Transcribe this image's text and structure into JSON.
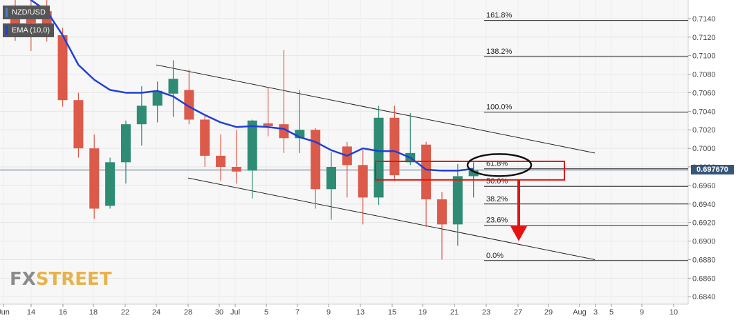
{
  "legend": {
    "symbol": "NZD/USD",
    "indicator": "EMA (10,0)",
    "symbol_color": "#4a7dd0",
    "indicator_color": "#1f3fd6"
  },
  "watermark": {
    "part1": "FX",
    "part2": "STREET"
  },
  "current_price_label": "0.697670",
  "colors": {
    "bull": "#2e8c74",
    "bear": "#dc5a4a",
    "ema": "#1f3fd6",
    "grid": "#e6e6e6",
    "annotation_red": "#e51212"
  },
  "chart_data": {
    "type": "candlestick",
    "title": "",
    "ylim": [
      0.6832,
      0.716
    ],
    "y_ticks": [
      "0.6840",
      "0.6860",
      "0.6880",
      "0.6900",
      "0.6920",
      "0.6940",
      "0.6960",
      "0.6980",
      "0.7000",
      "0.7020",
      "0.7040",
      "0.7060",
      "0.7080",
      "0.7100",
      "0.7120",
      "0.7140"
    ],
    "x_tick_labels": [
      "Jun",
      "14",
      "16",
      "18",
      "22",
      "24",
      "28",
      "30",
      "Jul",
      "5",
      "7",
      "9",
      "13",
      "15",
      "19",
      "21",
      "23",
      "27",
      "29",
      "Aug",
      "3",
      "5",
      "9",
      "10"
    ],
    "candles": [
      {
        "date": "Jun 11",
        "open": 0.714,
        "high": 0.716,
        "low": 0.7116,
        "close": 0.713
      },
      {
        "date": "Jun 14",
        "open": 0.714,
        "high": 0.716,
        "low": 0.7105,
        "close": 0.7135
      },
      {
        "date": "Jun 15",
        "open": 0.7148,
        "high": 0.716,
        "low": 0.7115,
        "close": 0.7122
      },
      {
        "date": "Jun 16",
        "open": 0.7122,
        "high": 0.713,
        "low": 0.7045,
        "close": 0.7052
      },
      {
        "date": "Jun 17",
        "open": 0.7052,
        "high": 0.706,
        "low": 0.699,
        "close": 0.7
      },
      {
        "date": "Jun 18",
        "open": 0.7,
        "high": 0.7015,
        "low": 0.6924,
        "close": 0.6935
      },
      {
        "date": "Jun 21",
        "open": 0.6938,
        "high": 0.699,
        "low": 0.6935,
        "close": 0.6985
      },
      {
        "date": "Jun 22",
        "open": 0.6985,
        "high": 0.703,
        "low": 0.6962,
        "close": 0.7026
      },
      {
        "date": "Jun 23",
        "open": 0.7026,
        "high": 0.7067,
        "low": 0.7003,
        "close": 0.7046
      },
      {
        "date": "Jun 24",
        "open": 0.7046,
        "high": 0.7072,
        "low": 0.7028,
        "close": 0.7062
      },
      {
        "date": "Jun 25",
        "open": 0.7059,
        "high": 0.7095,
        "low": 0.7034,
        "close": 0.7075
      },
      {
        "date": "Jun 28",
        "open": 0.7063,
        "high": 0.7085,
        "low": 0.7026,
        "close": 0.7031
      },
      {
        "date": "Jun 29",
        "open": 0.7031,
        "high": 0.7036,
        "low": 0.698,
        "close": 0.6992
      },
      {
        "date": "Jun 30",
        "open": 0.6992,
        "high": 0.7015,
        "low": 0.6965,
        "close": 0.698
      },
      {
        "date": "Jul 1",
        "open": 0.698,
        "high": 0.702,
        "low": 0.6962,
        "close": 0.6975
      },
      {
        "date": "Jul 2",
        "open": 0.6976,
        "high": 0.7031,
        "low": 0.6946,
        "close": 0.703
      },
      {
        "date": "Jul 5",
        "open": 0.7027,
        "high": 0.7066,
        "low": 0.7013,
        "close": 0.7024
      },
      {
        "date": "Jul 6",
        "open": 0.7026,
        "high": 0.7106,
        "low": 0.6995,
        "close": 0.7011
      },
      {
        "date": "Jul 7",
        "open": 0.7011,
        "high": 0.7063,
        "low": 0.6995,
        "close": 0.702
      },
      {
        "date": "Jul 8",
        "open": 0.702,
        "high": 0.7022,
        "low": 0.6935,
        "close": 0.6956
      },
      {
        "date": "Jul 9",
        "open": 0.6956,
        "high": 0.6996,
        "low": 0.6923,
        "close": 0.698
      },
      {
        "date": "Jul 12",
        "open": 0.7002,
        "high": 0.7007,
        "low": 0.6947,
        "close": 0.6982
      },
      {
        "date": "Jul 13",
        "open": 0.6982,
        "high": 0.6998,
        "low": 0.6918,
        "close": 0.6947
      },
      {
        "date": "Jul 14",
        "open": 0.6947,
        "high": 0.7046,
        "low": 0.6939,
        "close": 0.7033
      },
      {
        "date": "Jul 15",
        "open": 0.7033,
        "high": 0.7046,
        "low": 0.6965,
        "close": 0.6971
      },
      {
        "date": "Jul 16",
        "open": 0.6985,
        "high": 0.7038,
        "low": 0.6982,
        "close": 0.6995
      },
      {
        "date": "Jul 19",
        "open": 0.7004,
        "high": 0.7007,
        "low": 0.6915,
        "close": 0.6945
      },
      {
        "date": "Jul 20",
        "open": 0.6945,
        "high": 0.6953,
        "low": 0.688,
        "close": 0.6918
      },
      {
        "date": "Jul 21",
        "open": 0.6918,
        "high": 0.6983,
        "low": 0.6895,
        "close": 0.697
      },
      {
        "date": "Jul 22",
        "open": 0.697,
        "high": 0.6985,
        "low": 0.6947,
        "close": 0.6976
      }
    ],
    "ema": [
      0.7175,
      0.716,
      0.7148,
      0.7122,
      0.709,
      0.7074,
      0.7063,
      0.706,
      0.706,
      0.7062,
      0.7056,
      0.7045,
      0.7036,
      0.7028,
      0.7023,
      0.7024,
      0.7023,
      0.7021,
      0.7012,
      0.7007,
      0.6998,
      0.6992,
      0.7,
      0.6997,
      0.6997,
      0.699,
      0.6977,
      0.6976,
      0.6976,
      0.6978
    ],
    "fib_levels": [
      {
        "label": "161.8%",
        "price": 0.7138
      },
      {
        "label": "138.2%",
        "price": 0.7099
      },
      {
        "label": "100.0%",
        "price": 0.7039
      },
      {
        "label": "61.8%",
        "price": 0.6978
      },
      {
        "label": "50.0%",
        "price": 0.6959
      },
      {
        "label": "38.2%",
        "price": 0.694
      },
      {
        "label": "23.6%",
        "price": 0.6917
      },
      {
        "label": "0.0%",
        "price": 0.6879
      }
    ],
    "channel_upper": {
      "from": {
        "date": "Jun 24",
        "price": 0.709
      },
      "to": {
        "date": "Aug 2",
        "price": 0.6995
      }
    },
    "channel_lower": {
      "from": {
        "date": "Jun 24",
        "price": 0.6968
      },
      "to": {
        "date": "Aug 2",
        "price": 0.688
      }
    },
    "current_price": 0.69767
  }
}
